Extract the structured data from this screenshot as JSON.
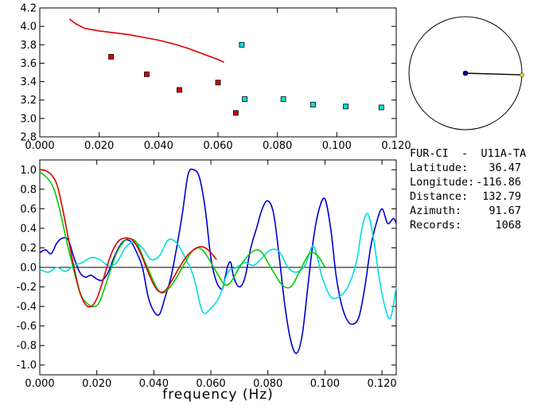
{
  "info_panel": {
    "station_pair": "FUR-CI  -  U11A-TA",
    "rows": [
      {
        "label": "Latitude:",
        "value": "36.47"
      },
      {
        "label": "Longitude:",
        "value": "-116.86"
      },
      {
        "label": "Distance:",
        "value": "132.79"
      },
      {
        "label": "Azimuth:",
        "value": "91.67"
      },
      {
        "label": "Records:",
        "value": "1068"
      }
    ]
  },
  "azimuth_plot": {
    "azimuth_deg": 91.67,
    "line_color": "#000000",
    "center_color": "#000080",
    "end_color": "#ffd700"
  },
  "chart_data": [
    {
      "type": "scatter",
      "title": "",
      "xlabel": "",
      "ylabel": "",
      "xlim": [
        0.0,
        0.12
      ],
      "ylim": [
        2.8,
        4.2
      ],
      "xticks": [
        "0.000",
        "0.020",
        "0.040",
        "0.060",
        "0.080",
        "0.100",
        "0.120"
      ],
      "yticks": [
        "2.8",
        "3.0",
        "3.2",
        "3.4",
        "3.6",
        "3.8",
        "4.0",
        "4.2"
      ],
      "series": [
        {
          "kind": "line",
          "color": "#dd0000",
          "x": [
            0.01,
            0.012,
            0.015,
            0.02,
            0.025,
            0.03,
            0.035,
            0.04,
            0.045,
            0.05,
            0.055,
            0.06,
            0.062
          ],
          "y": [
            4.08,
            4.03,
            3.98,
            3.95,
            3.93,
            3.91,
            3.88,
            3.85,
            3.81,
            3.76,
            3.7,
            3.64,
            3.61
          ]
        },
        {
          "kind": "points",
          "color": "#dd0000",
          "x": [
            0.024,
            0.036,
            0.047,
            0.06,
            0.066
          ],
          "y": [
            3.67,
            3.48,
            3.31,
            3.39,
            3.06
          ]
        },
        {
          "kind": "points",
          "color": "#00dddd",
          "x": [
            0.068,
            0.069,
            0.082,
            0.092,
            0.103,
            0.115
          ],
          "y": [
            3.8,
            3.21,
            3.21,
            3.15,
            3.13,
            3.12
          ]
        }
      ]
    },
    {
      "type": "line",
      "title": "",
      "xlabel": "frequency (Hz)",
      "ylabel": "",
      "xlim": [
        0.0,
        0.125
      ],
      "ylim": [
        -1.1,
        1.1
      ],
      "xticks": [
        "0.000",
        "0.020",
        "0.040",
        "0.060",
        "0.080",
        "0.100",
        "0.120"
      ],
      "yticks": [
        "-1.0",
        "-0.8",
        "-0.6",
        "-0.4",
        "-0.2",
        "0.0",
        "0.2",
        "0.4",
        "0.6",
        "0.8",
        "1.0"
      ],
      "series": [
        {
          "color": "#0000cc",
          "x": [
            0.0,
            0.002,
            0.004,
            0.006,
            0.008,
            0.01,
            0.012,
            0.014,
            0.016,
            0.018,
            0.02,
            0.022,
            0.024,
            0.026,
            0.028,
            0.03,
            0.032,
            0.034,
            0.036,
            0.038,
            0.04,
            0.042,
            0.044,
            0.046,
            0.048,
            0.05,
            0.052,
            0.054,
            0.056,
            0.058,
            0.06,
            0.062,
            0.064,
            0.065,
            0.066,
            0.067,
            0.068,
            0.07,
            0.072,
            0.074,
            0.076,
            0.078,
            0.08,
            0.082,
            0.084,
            0.086,
            0.088,
            0.09,
            0.092,
            0.094,
            0.096,
            0.098,
            0.1,
            0.102,
            0.104,
            0.106,
            0.108,
            0.11,
            0.112,
            0.114,
            0.116,
            0.118,
            0.12,
            0.122,
            0.124,
            0.125
          ],
          "y": [
            0.15,
            0.18,
            0.14,
            0.25,
            0.3,
            0.28,
            0.1,
            -0.05,
            -0.1,
            -0.08,
            -0.12,
            -0.13,
            -0.05,
            0.1,
            0.22,
            0.28,
            0.26,
            0.15,
            0.0,
            -0.3,
            -0.45,
            -0.48,
            -0.3,
            -0.1,
            0.2,
            0.55,
            0.95,
            1.0,
            0.92,
            0.6,
            0.1,
            -0.15,
            -0.22,
            -0.1,
            0.02,
            0.05,
            -0.1,
            -0.2,
            -0.1,
            0.2,
            0.4,
            0.6,
            0.68,
            0.55,
            0.1,
            -0.4,
            -0.75,
            -0.88,
            -0.7,
            -0.2,
            0.3,
            0.6,
            0.7,
            0.4,
            -0.1,
            -0.4,
            -0.55,
            -0.58,
            -0.5,
            -0.2,
            0.2,
            0.45,
            0.6,
            0.45,
            0.5,
            0.45
          ]
        },
        {
          "color": "#00dddd",
          "x": [
            0.0,
            0.003,
            0.006,
            0.009,
            0.012,
            0.015,
            0.018,
            0.021,
            0.024,
            0.027,
            0.03,
            0.033,
            0.036,
            0.039,
            0.042,
            0.045,
            0.048,
            0.051,
            0.054,
            0.057,
            0.06,
            0.063,
            0.066,
            0.069,
            0.072,
            0.075,
            0.078,
            0.081,
            0.084,
            0.087,
            0.09,
            0.093,
            0.096,
            0.099,
            0.102,
            0.105,
            0.108,
            0.111,
            0.113,
            0.115,
            0.117,
            0.119,
            0.121,
            0.123,
            0.125
          ],
          "y": [
            -0.02,
            -0.05,
            0.0,
            -0.04,
            0.02,
            0.05,
            0.1,
            0.08,
            0.02,
            0.05,
            0.2,
            0.26,
            0.2,
            0.08,
            0.12,
            0.28,
            0.25,
            0.1,
            -0.1,
            -0.45,
            -0.42,
            -0.3,
            -0.05,
            0.0,
            0.05,
            0.02,
            0.1,
            0.18,
            0.16,
            0.0,
            -0.05,
            0.02,
            0.22,
            -0.1,
            -0.3,
            -0.3,
            -0.2,
            0.05,
            0.4,
            0.55,
            0.3,
            -0.1,
            -0.4,
            -0.52,
            -0.2
          ]
        },
        {
          "color": "#00cc00",
          "x": [
            0.0,
            0.005,
            0.01,
            0.014,
            0.017,
            0.019,
            0.021,
            0.024,
            0.027,
            0.03,
            0.032,
            0.034,
            0.037,
            0.04,
            0.042,
            0.044,
            0.047,
            0.05,
            0.053,
            0.055,
            0.057,
            0.059,
            0.061,
            0.063,
            0.065,
            0.067,
            0.07,
            0.073,
            0.076,
            0.078,
            0.08,
            0.082,
            0.085,
            0.088,
            0.091,
            0.094,
            0.096,
            0.098,
            0.1
          ],
          "y": [
            0.98,
            0.8,
            0.2,
            -0.25,
            -0.38,
            -0.4,
            -0.35,
            -0.1,
            0.15,
            0.28,
            0.29,
            0.25,
            0.05,
            -0.15,
            -0.25,
            -0.25,
            -0.15,
            0.0,
            0.15,
            0.2,
            0.18,
            0.1,
            0.0,
            -0.1,
            -0.18,
            -0.15,
            0.0,
            0.12,
            0.18,
            0.15,
            0.05,
            -0.05,
            -0.18,
            -0.2,
            -0.05,
            0.12,
            0.15,
            0.1,
            0.0
          ]
        },
        {
          "color": "#dd0000",
          "x": [
            0.0,
            0.002,
            0.004,
            0.006,
            0.008,
            0.01,
            0.012,
            0.014,
            0.016,
            0.018,
            0.02,
            0.022,
            0.024,
            0.026,
            0.028,
            0.03,
            0.032,
            0.034,
            0.036,
            0.038,
            0.04,
            0.042,
            0.044,
            0.046,
            0.048,
            0.05,
            0.052,
            0.054,
            0.056,
            0.058,
            0.06,
            0.062
          ],
          "y": [
            1.0,
            0.99,
            0.95,
            0.85,
            0.6,
            0.3,
            0.0,
            -0.25,
            -0.38,
            -0.4,
            -0.32,
            -0.15,
            0.05,
            0.2,
            0.28,
            0.3,
            0.29,
            0.22,
            0.1,
            -0.05,
            -0.18,
            -0.25,
            -0.24,
            -0.15,
            -0.05,
            0.05,
            0.13,
            0.18,
            0.21,
            0.2,
            0.15,
            0.08
          ]
        }
      ]
    }
  ]
}
